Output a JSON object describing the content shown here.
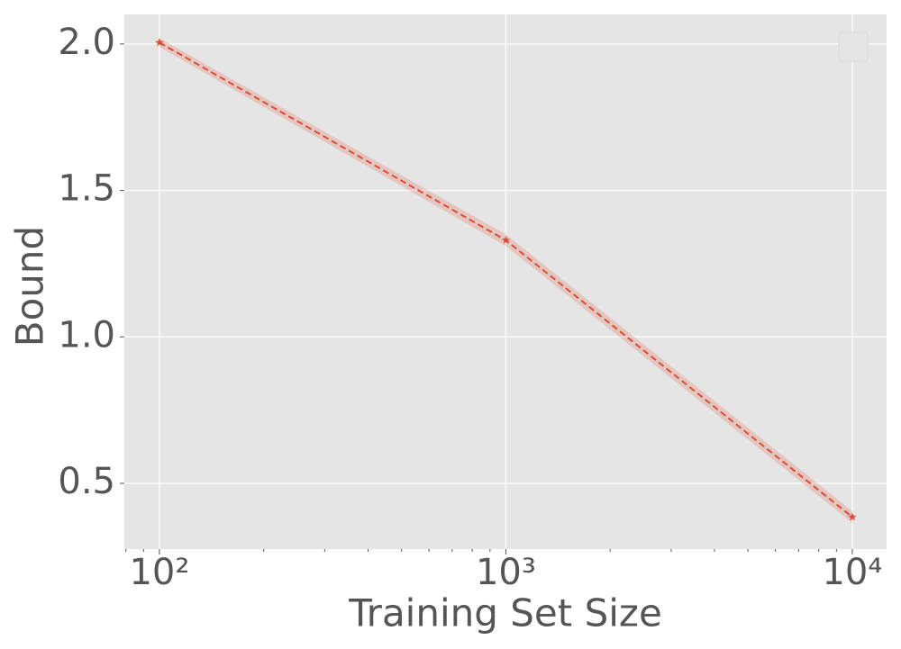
{
  "chart_data": {
    "type": "line",
    "xlabel": "Training Set Size",
    "ylabel": "Bound",
    "x": [
      100,
      1000,
      10000
    ],
    "series": [
      {
        "color": "#e24a33",
        "values": [
          2.005,
          1.33,
          0.385
        ],
        "lower": [
          1.99,
          1.31,
          0.365
        ],
        "upper": [
          2.02,
          1.35,
          0.405
        ]
      }
    ],
    "xscale": "log",
    "xlim": [
      79.2,
      12560
    ],
    "ylim": [
      0.2756,
      2.101
    ],
    "xticks": [
      {
        "value": 100,
        "label": "10²"
      },
      {
        "value": 1000,
        "label": "10³"
      },
      {
        "value": 10000,
        "label": "10⁴"
      }
    ],
    "xminorticks": [
      80,
      90,
      200,
      300,
      400,
      500,
      600,
      700,
      800,
      900,
      2000,
      3000,
      4000,
      5000,
      6000,
      7000,
      8000,
      9000
    ],
    "yticks": [
      0.5,
      {
        "value": 1,
        "label": "1.0"
      },
      1.5,
      {
        "value": 2,
        "label": "2.0"
      }
    ],
    "grid": true,
    "legend": "upper right"
  }
}
